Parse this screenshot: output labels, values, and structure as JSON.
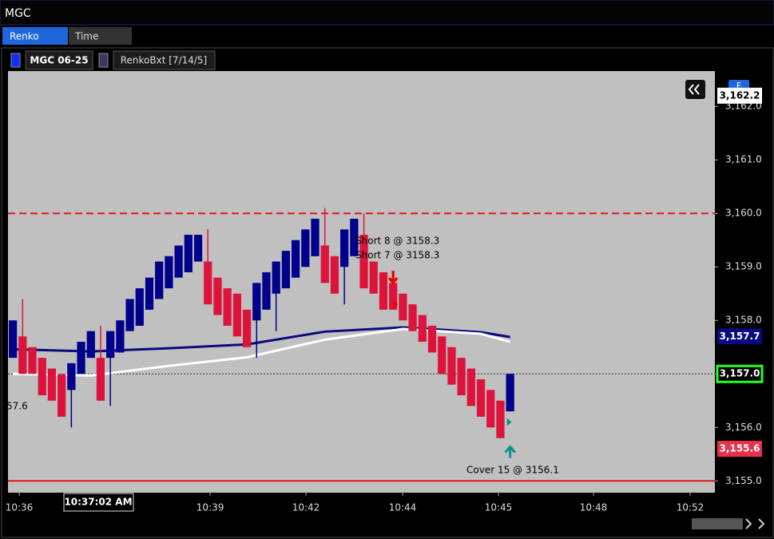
{
  "window": {
    "title": "MGC"
  },
  "tabs": [
    "Renko",
    "Time"
  ],
  "toolbar": {
    "instrument": "MGC 06-25",
    "indicator": "RenkoBxt [7/14/5]",
    "feed": "F"
  },
  "chart_data": {
    "type": "candlestick",
    "up_color": "#00008b",
    "down_color": "#dc143c",
    "background": "#c0c0c0",
    "open": [
      3157.3,
      3157.7,
      3157.5,
      3157.3,
      3157.1,
      3157.0,
      3156.7,
      3157.0,
      3157.3,
      3157.3,
      3157.3,
      3157.4,
      3157.8,
      3157.9,
      3158.2,
      3158.4,
      3158.6,
      3158.8,
      3158.9,
      3159.1,
      3159.1,
      3158.8,
      3158.6,
      3158.5,
      3158.2,
      3158.0,
      3158.2,
      3158.5,
      3158.6,
      3158.8,
      3159.0,
      3159.2,
      3159.4,
      3159.2,
      3159.0,
      3159.2,
      3159.6,
      3159.1,
      3158.9,
      3158.7,
      3158.5,
      3158.3,
      3158.1,
      3157.9,
      3157.7,
      3157.5,
      3157.3,
      3157.1,
      3156.9,
      3156.7,
      3156.5,
      3156.3
    ],
    "high": [
      3158.0,
      3158.4,
      3157.5,
      3157.3,
      3157.1,
      3157.0,
      3157.2,
      3157.6,
      3157.8,
      3157.9,
      3157.8,
      3158.0,
      3158.4,
      3158.6,
      3158.8,
      3159.1,
      3159.2,
      3159.4,
      3159.6,
      3159.6,
      3159.7,
      3158.8,
      3158.6,
      3158.5,
      3158.2,
      3158.7,
      3158.9,
      3159.1,
      3159.3,
      3159.5,
      3159.7,
      3159.9,
      3160.1,
      3159.2,
      3159.7,
      3159.9,
      3160.0,
      3159.1,
      3158.9,
      3158.7,
      3158.5,
      3158.3,
      3158.1,
      3157.9,
      3157.7,
      3157.5,
      3157.3,
      3157.1,
      3156.9,
      3156.7,
      3156.5,
      3157.0
    ],
    "low": [
      3157.3,
      3157.0,
      3157.0,
      3156.6,
      3156.5,
      3156.2,
      3156.0,
      3157.0,
      3157.3,
      3156.5,
      3156.4,
      3157.4,
      3157.8,
      3157.9,
      3158.2,
      3158.4,
      3158.6,
      3158.8,
      3158.9,
      3159.1,
      3158.3,
      3158.1,
      3157.9,
      3157.7,
      3157.5,
      3157.3,
      3158.2,
      3157.8,
      3158.6,
      3158.8,
      3159.0,
      3159.2,
      3158.7,
      3158.5,
      3158.3,
      3159.2,
      3158.6,
      3158.5,
      3158.2,
      3158.2,
      3158.0,
      3157.8,
      3157.6,
      3157.4,
      3157.0,
      3156.8,
      3156.6,
      3156.4,
      3156.2,
      3156.0,
      3155.8,
      3156.3
    ],
    "close": [
      3158.0,
      3157.0,
      3157.0,
      3156.6,
      3156.5,
      3156.2,
      3157.2,
      3157.6,
      3157.8,
      3156.5,
      3157.8,
      3158.0,
      3158.4,
      3158.6,
      3158.8,
      3159.1,
      3159.2,
      3159.4,
      3159.6,
      3159.6,
      3158.3,
      3158.1,
      3157.9,
      3157.7,
      3157.5,
      3158.7,
      3158.9,
      3159.1,
      3159.3,
      3159.5,
      3159.7,
      3159.9,
      3158.7,
      3158.5,
      3159.7,
      3159.9,
      3158.6,
      3158.5,
      3158.2,
      3158.2,
      3158.0,
      3157.8,
      3157.6,
      3157.4,
      3157.0,
      3156.8,
      3156.6,
      3156.4,
      3156.2,
      3156.0,
      3155.8,
      3157.0
    ],
    "xlim": [
      -0.5,
      72
    ],
    "xticks": [
      {
        "value": 0.65,
        "label": "10:36"
      },
      {
        "value": 20.23,
        "label": "10:39"
      },
      {
        "value": 30.06,
        "label": "10:42"
      },
      {
        "value": 39.97,
        "label": "10:44"
      },
      {
        "value": 49.8,
        "label": "10:45"
      },
      {
        "value": 59.55,
        "label": "10:48"
      },
      {
        "value": 69.46,
        "label": "10:52"
      }
    ],
    "ylim": [
      3154.78,
      3162.66
    ],
    "yticks": [
      {
        "value": 3155,
        "label": "3,155.0"
      },
      {
        "value": 3156,
        "label": "3,156.0"
      },
      {
        "value": 3157,
        "label": "3,157.0"
      },
      {
        "value": 3158,
        "label": "3,158.0"
      },
      {
        "value": 3159,
        "label": "3,159.0"
      },
      {
        "value": 3160,
        "label": "3,160.0"
      },
      {
        "value": 3161,
        "label": "3,161.0"
      },
      {
        "value": 3162,
        "label": "3,162.0"
      }
    ],
    "averages": [
      {
        "color": "#0a0a80",
        "x": [
          0,
          8,
          16,
          24,
          32,
          40,
          48,
          51
        ],
        "values": [
          3157.46,
          3157.42,
          3157.48,
          3157.55,
          3157.79,
          3157.87,
          3157.78,
          3157.69
        ]
      },
      {
        "color": "#ffffff",
        "x": [
          0,
          8,
          16,
          24,
          32,
          40,
          48,
          51
        ],
        "values": [
          3157.0,
          3156.97,
          3157.15,
          3157.31,
          3157.64,
          3157.84,
          3157.75,
          3157.6
        ]
      }
    ],
    "levels": [
      {
        "value": 3160.0,
        "color": "#e8141e",
        "style": "dashed"
      },
      {
        "value": 3155.0,
        "color": "#e8141e",
        "style": "solid"
      },
      {
        "value": 3157.0,
        "color": "#333333",
        "style": "dotted"
      }
    ],
    "price_badges": [
      {
        "label": "3,162.2",
        "value": 3162.2,
        "color": "#ffffff",
        "text_color": "#000000"
      },
      {
        "label": "3,157.7",
        "value": 3157.7,
        "color": "#0a0a80",
        "text_color": "#ffffff"
      },
      {
        "label": "3,157.0",
        "value": 3157.0,
        "color": "#000000",
        "text_color": "#ffffff"
      },
      {
        "label": "3,155.6",
        "value": 3155.6,
        "color": "#e8304a",
        "text_color": "#ffffff"
      }
    ],
    "trades": [
      {
        "label": "Short 8 @ 3158.3",
        "side": "short",
        "bar": 39,
        "price": 3158.3
      },
      {
        "label": "Short 7 @ 3158.3",
        "side": "short",
        "bar": 39,
        "price": 3158.3
      },
      {
        "label": "Cover 15 @ 3156.1",
        "side": "cover",
        "bar": 51,
        "price": 3156.1
      }
    ],
    "left_label": "57.6",
    "crosshair_time": "10:37:02 AM"
  }
}
